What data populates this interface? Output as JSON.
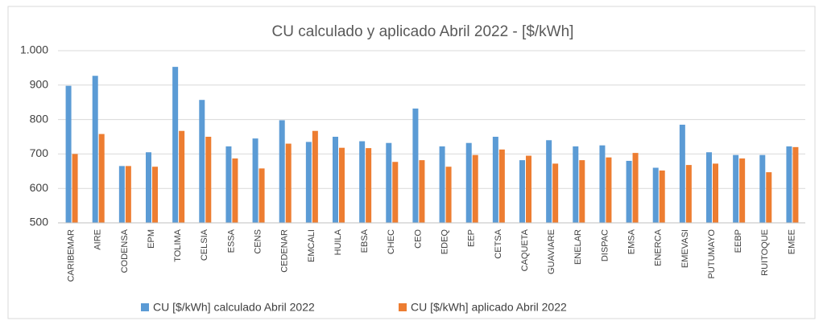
{
  "chart_data": {
    "type": "bar",
    "title": "CU calculado y aplicado  Abril 2022 - [$/kWh]",
    "categories": [
      "CARIBEMAR",
      "AIRE",
      "CODENSA",
      "EPM",
      "TOLIMA",
      "CELSIA",
      "ESSA",
      "CENS",
      "CEDENAR",
      "EMCALI",
      "HUILA",
      "EBSA",
      "CHEC",
      "CEO",
      "EDEQ",
      "EEP",
      "CETSA",
      "CAQUETA",
      "GUAVIARE",
      "ENELAR",
      "DISPAC",
      "EMSA",
      "ENERCA",
      "EMEVASI",
      "PUTUMAYO",
      "EEBP",
      "RUITOQUE",
      "EMEE"
    ],
    "series": [
      {
        "name": "CU [$/kWh] calculado Abril 2022",
        "color": "#5b9bd5",
        "values": [
          898,
          927,
          665,
          705,
          953,
          857,
          722,
          745,
          798,
          735,
          750,
          737,
          732,
          832,
          722,
          732,
          750,
          682,
          740,
          722,
          725,
          680,
          660,
          785,
          705,
          697,
          697,
          722
        ]
      },
      {
        "name": "CU [$/kWh] aplicado Abril 2022",
        "color": "#ed7d31",
        "values": [
          700,
          758,
          665,
          663,
          767,
          750,
          687,
          658,
          730,
          767,
          718,
          717,
          677,
          682,
          663,
          697,
          713,
          695,
          672,
          682,
          690,
          703,
          652,
          668,
          672,
          687,
          647,
          720
        ]
      }
    ],
    "ylim": [
      500,
      1000
    ],
    "yticks": [
      500,
      600,
      700,
      800,
      900,
      {
        "value": 1000,
        "label": "1.000"
      }
    ],
    "grid": true,
    "legend": "bottom"
  }
}
